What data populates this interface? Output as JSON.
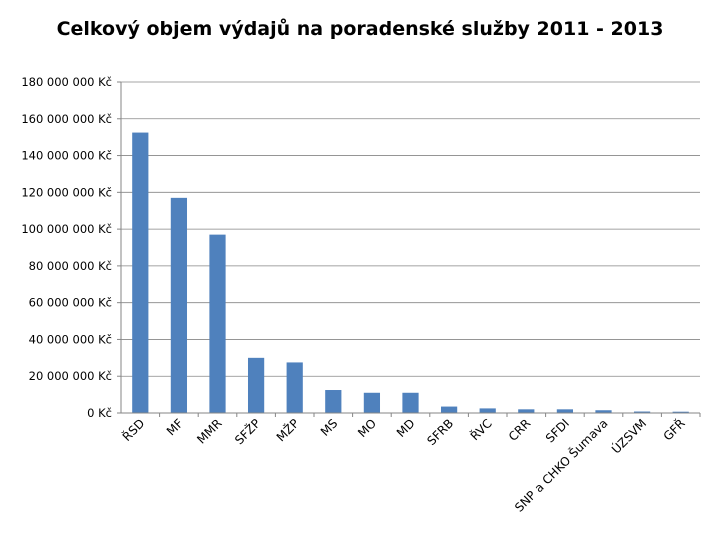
{
  "chart_data": {
    "type": "bar",
    "title": "Celkový objem výdajů na poradenské služby 2011 - 2013",
    "xlabel": "",
    "ylabel": "",
    "categories": [
      "ŘSD",
      "MF",
      "MMR",
      "SFŽP",
      "MŽP",
      "MS",
      "MO",
      "MD",
      "SFRB",
      "ŘVC",
      "CRR",
      "SFDI",
      "SNP a CHKO Šumava",
      "ÚZSVM",
      "GFŘ"
    ],
    "values": [
      152500000,
      117000000,
      97000000,
      30000000,
      27500000,
      12500000,
      11000000,
      11000000,
      3500000,
      2500000,
      2000000,
      2000000,
      1500000,
      800000,
      700000
    ],
    "ylim": [
      0,
      180000000
    ],
    "ytick_values": [
      0,
      20000000,
      40000000,
      60000000,
      80000000,
      100000000,
      120000000,
      140000000,
      160000000,
      180000000
    ],
    "ytick_labels": [
      "0 Kč",
      "20 000 000 Kč",
      "40 000 000 Kč",
      "60 000 000 Kč",
      "80 000 000 Kč",
      "100 000 000 Kč",
      "120 000 000 Kč",
      "140 000 000 Kč",
      "160 000 000 Kč",
      "180 000 000 Kč"
    ],
    "grid": true,
    "legend": "none",
    "bar_color": "#4f81bd"
  }
}
